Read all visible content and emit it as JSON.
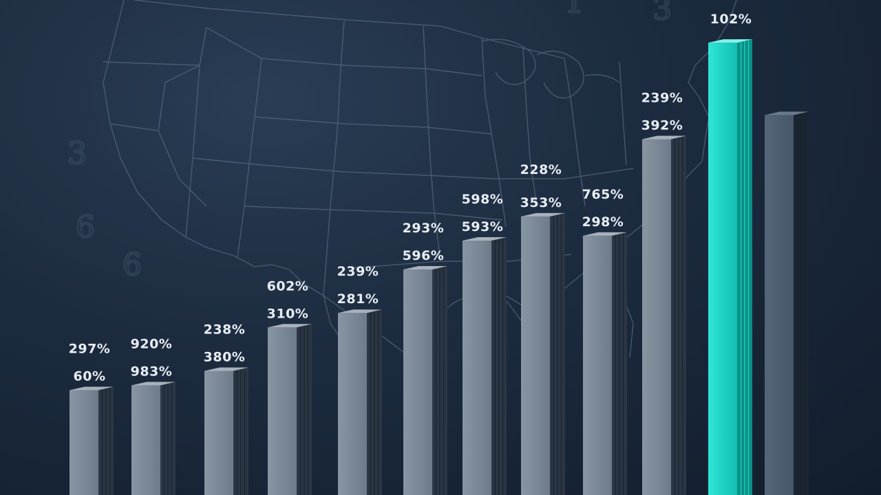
{
  "chart_data": {
    "type": "bar",
    "title": "",
    "xlabel": "",
    "ylabel": "",
    "grid": false,
    "legend": "none",
    "background": "US state outline map",
    "colors": {
      "bar": "#7d8b99",
      "highlight": "#1fd4c6",
      "last": "#4c5b6c"
    },
    "highlight_index": 10,
    "values": [
      0.22,
      0.23,
      0.26,
      0.35,
      0.38,
      0.47,
      0.53,
      0.58,
      0.54,
      0.74,
      0.94,
      0.79
    ],
    "labels": [
      [
        "297%",
        "60%"
      ],
      [
        "920%",
        "983%"
      ],
      [
        "238%",
        "380%"
      ],
      [
        "602%",
        "310%"
      ],
      [
        "239%",
        "281%"
      ],
      [
        "293%",
        "596%"
      ],
      [
        "598%",
        "593%"
      ],
      [
        "228%",
        "353%"
      ],
      [
        "765%",
        "298%"
      ],
      [
        "239%",
        "392%"
      ],
      [
        "102%"
      ],
      []
    ],
    "ghost_digits": [
      "1",
      "3",
      "3",
      "6",
      "6"
    ]
  }
}
